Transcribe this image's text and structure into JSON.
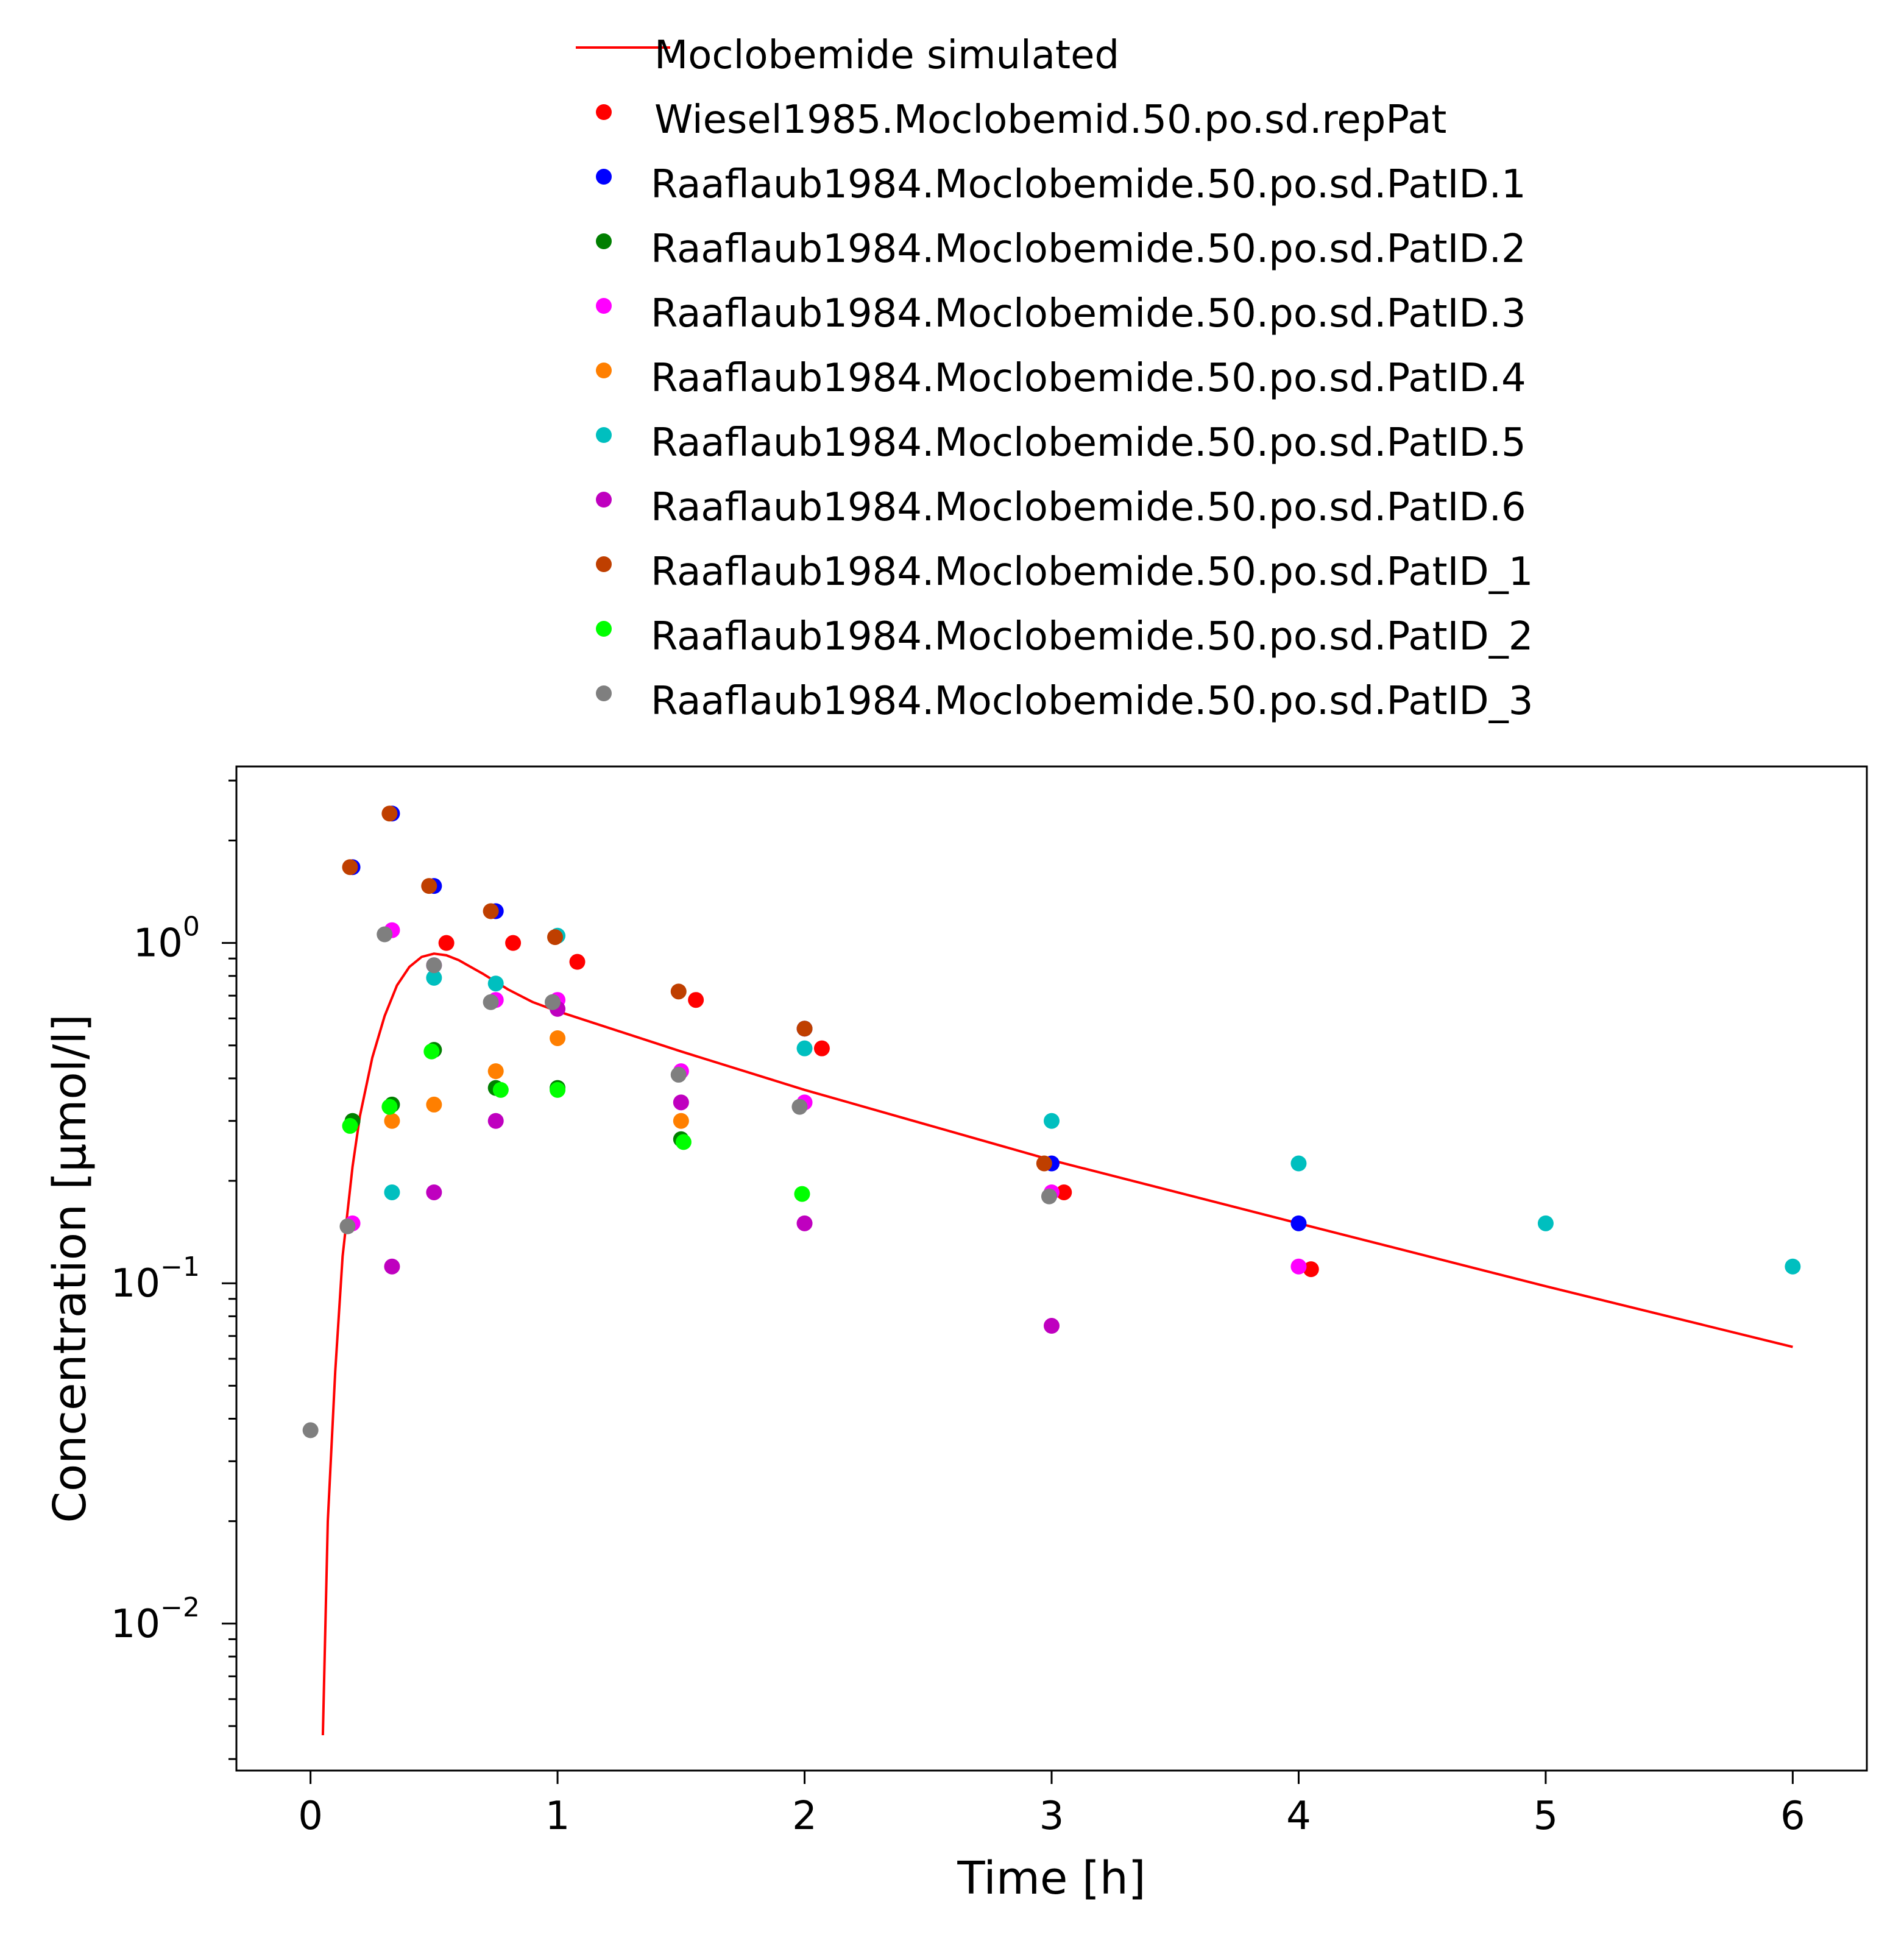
{
  "chart_data": {
    "type": "scatter",
    "title": "",
    "xlabel": "Time [h]",
    "ylabel": "Concentration [µmol/l]",
    "xlim": [
      -0.3,
      6.3
    ],
    "ylim": [
      0.0037,
      3.3
    ],
    "y_scale": "log",
    "grid": false,
    "legend_position": "top",
    "x_ticks": [
      0,
      1,
      2,
      3,
      4,
      5,
      6
    ],
    "x_tick_labels": [
      "0",
      "1",
      "2",
      "3",
      "4",
      "5",
      "6"
    ],
    "y_ticks": [
      {
        "value": 1,
        "base": "10",
        "exponent": "0"
      },
      {
        "value": 0.1,
        "base": "10",
        "exponent": "−1"
      },
      {
        "value": 0.01,
        "base": "10",
        "exponent": "−2"
      }
    ],
    "simulated": {
      "name": "Moclobemide simulated",
      "color": "#ff0000",
      "x": [
        0.05,
        0.07,
        0.1,
        0.13,
        0.17,
        0.2,
        0.25,
        0.3,
        0.35,
        0.4,
        0.45,
        0.5,
        0.55,
        0.6,
        0.7,
        0.8,
        0.9,
        1.0,
        1.25,
        1.5,
        2.0,
        3.0,
        4.0,
        5.0,
        6.0
      ],
      "y": [
        0.0047,
        0.02,
        0.055,
        0.12,
        0.22,
        0.31,
        0.46,
        0.61,
        0.75,
        0.85,
        0.91,
        0.93,
        0.92,
        0.89,
        0.81,
        0.73,
        0.67,
        0.63,
        0.55,
        0.48,
        0.37,
        0.23,
        0.15,
        0.098,
        0.065
      ]
    },
    "series": [
      {
        "name": "Wiesel1985.Moclobemid.50.po.sd.repPat",
        "color": "#ff0000",
        "x": [
          0.55,
          0.82,
          1.08,
          1.56,
          2.07,
          3.05,
          4.05
        ],
        "y": [
          1.0,
          1.0,
          0.88,
          0.68,
          0.49,
          0.185,
          0.11
        ]
      },
      {
        "name": "Raaflaub1984.Moclobemide.50.po.sd.PatID.1",
        "color": "#0000ff",
        "x": [
          0.17,
          0.33,
          0.5,
          0.75,
          2.0,
          3.0,
          4.0
        ],
        "y": [
          1.67,
          2.4,
          1.47,
          1.24,
          0.56,
          0.225,
          0.15
        ]
      },
      {
        "name": "Raaflaub1984.Moclobemide.50.po.sd.PatID.2",
        "color": "#007f00",
        "x": [
          0.17,
          0.33,
          0.5,
          0.75,
          1.0,
          1.5
        ],
        "y": [
          0.3,
          0.335,
          0.485,
          0.375,
          0.375,
          0.265
        ]
      },
      {
        "name": "Raaflaub1984.Moclobemide.50.po.sd.PatID.3",
        "color": "#ff00ff",
        "x": [
          0.17,
          0.33,
          0.5,
          0.75,
          1.0,
          1.5,
          2.0,
          3.0,
          4.0
        ],
        "y": [
          0.15,
          1.09,
          0.86,
          0.68,
          0.68,
          0.42,
          0.34,
          0.185,
          0.112
        ]
      },
      {
        "name": "Raaflaub1984.Moclobemide.50.po.sd.PatID.4",
        "color": "#ff7f00",
        "x": [
          0.33,
          0.5,
          0.75,
          1.0,
          1.5
        ],
        "y": [
          0.3,
          0.335,
          0.42,
          0.525,
          0.3
        ]
      },
      {
        "name": "Raaflaub1984.Moclobemide.50.po.sd.PatID.5",
        "color": "#00bfbf",
        "x": [
          0.33,
          0.5,
          0.75,
          1.0,
          2.0,
          3.0,
          4.0,
          5.0,
          6.0
        ],
        "y": [
          0.185,
          0.79,
          0.76,
          1.05,
          0.49,
          0.3,
          0.225,
          0.15,
          0.112
        ]
      },
      {
        "name": "Raaflaub1984.Moclobemide.50.po.sd.PatID.6",
        "color": "#bf00bf",
        "x": [
          0.33,
          0.5,
          0.75,
          1.0,
          1.5,
          2.0,
          3.0
        ],
        "y": [
          0.112,
          0.185,
          0.3,
          0.64,
          0.34,
          0.15,
          0.075
        ]
      },
      {
        "name": "Raaflaub1984.Moclobemide.50.po.sd.PatID_1",
        "color": "#bf3f00",
        "x": [
          0.16,
          0.32,
          0.48,
          0.73,
          0.99,
          1.49,
          2.0,
          2.97
        ],
        "y": [
          1.67,
          2.4,
          1.47,
          1.24,
          1.04,
          0.72,
          0.56,
          0.225
        ]
      },
      {
        "name": "Raaflaub1984.Moclobemide.50.po.sd.PatID_2",
        "color": "#00ff00",
        "x": [
          0.16,
          0.32,
          0.49,
          0.77,
          1.0,
          1.51,
          1.99
        ],
        "y": [
          0.29,
          0.33,
          0.48,
          0.37,
          0.37,
          0.26,
          0.183
        ]
      },
      {
        "name": "Raaflaub1984.Moclobemide.50.po.sd.PatID_3",
        "color": "#7f7f7f",
        "x": [
          0.0,
          0.15,
          0.3,
          0.5,
          0.73,
          0.98,
          1.49,
          1.98,
          2.99
        ],
        "y": [
          0.037,
          0.147,
          1.06,
          0.86,
          0.67,
          0.67,
          0.41,
          0.33,
          0.18
        ]
      }
    ]
  }
}
